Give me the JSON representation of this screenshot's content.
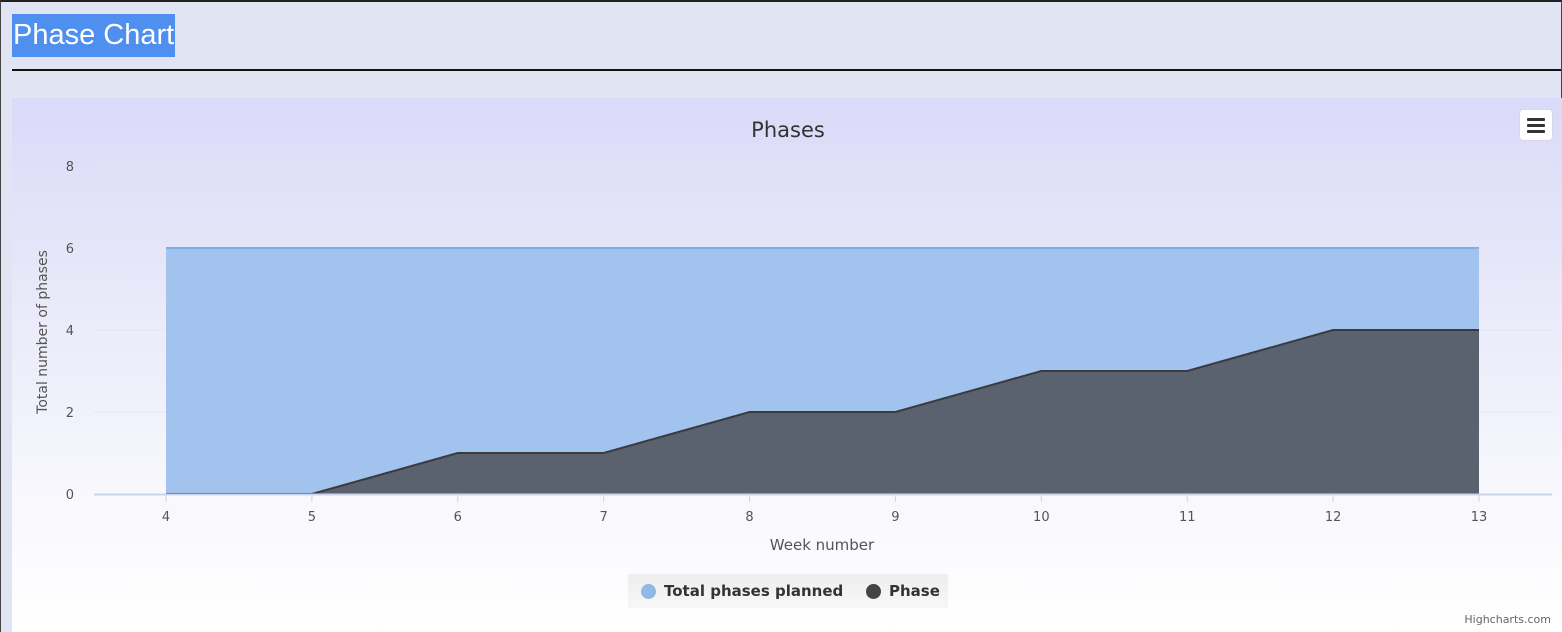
{
  "page": {
    "title": "Phase Chart"
  },
  "chart_data": {
    "type": "area",
    "title": "Phases",
    "xlabel": "Week number",
    "ylabel": "Total number of phases",
    "x": [
      4,
      5,
      6,
      7,
      8,
      9,
      10,
      11,
      12,
      13
    ],
    "yticks": [
      0,
      2,
      4,
      6,
      8
    ],
    "ylim": [
      0,
      8
    ],
    "grid": true,
    "legend_position": "bottom-center",
    "series": [
      {
        "name": "Total phases planned",
        "values": [
          6,
          6,
          6,
          6,
          6,
          6,
          6,
          6,
          6,
          6
        ],
        "color": "#90b8e8"
      },
      {
        "name": "Phase",
        "values": [
          0,
          0,
          1,
          1,
          2,
          2,
          3,
          3,
          4,
          4
        ],
        "color": "#434348"
      }
    ]
  },
  "credits": "Highcharts.com",
  "icons": {
    "menu": "hamburger-menu-icon"
  }
}
